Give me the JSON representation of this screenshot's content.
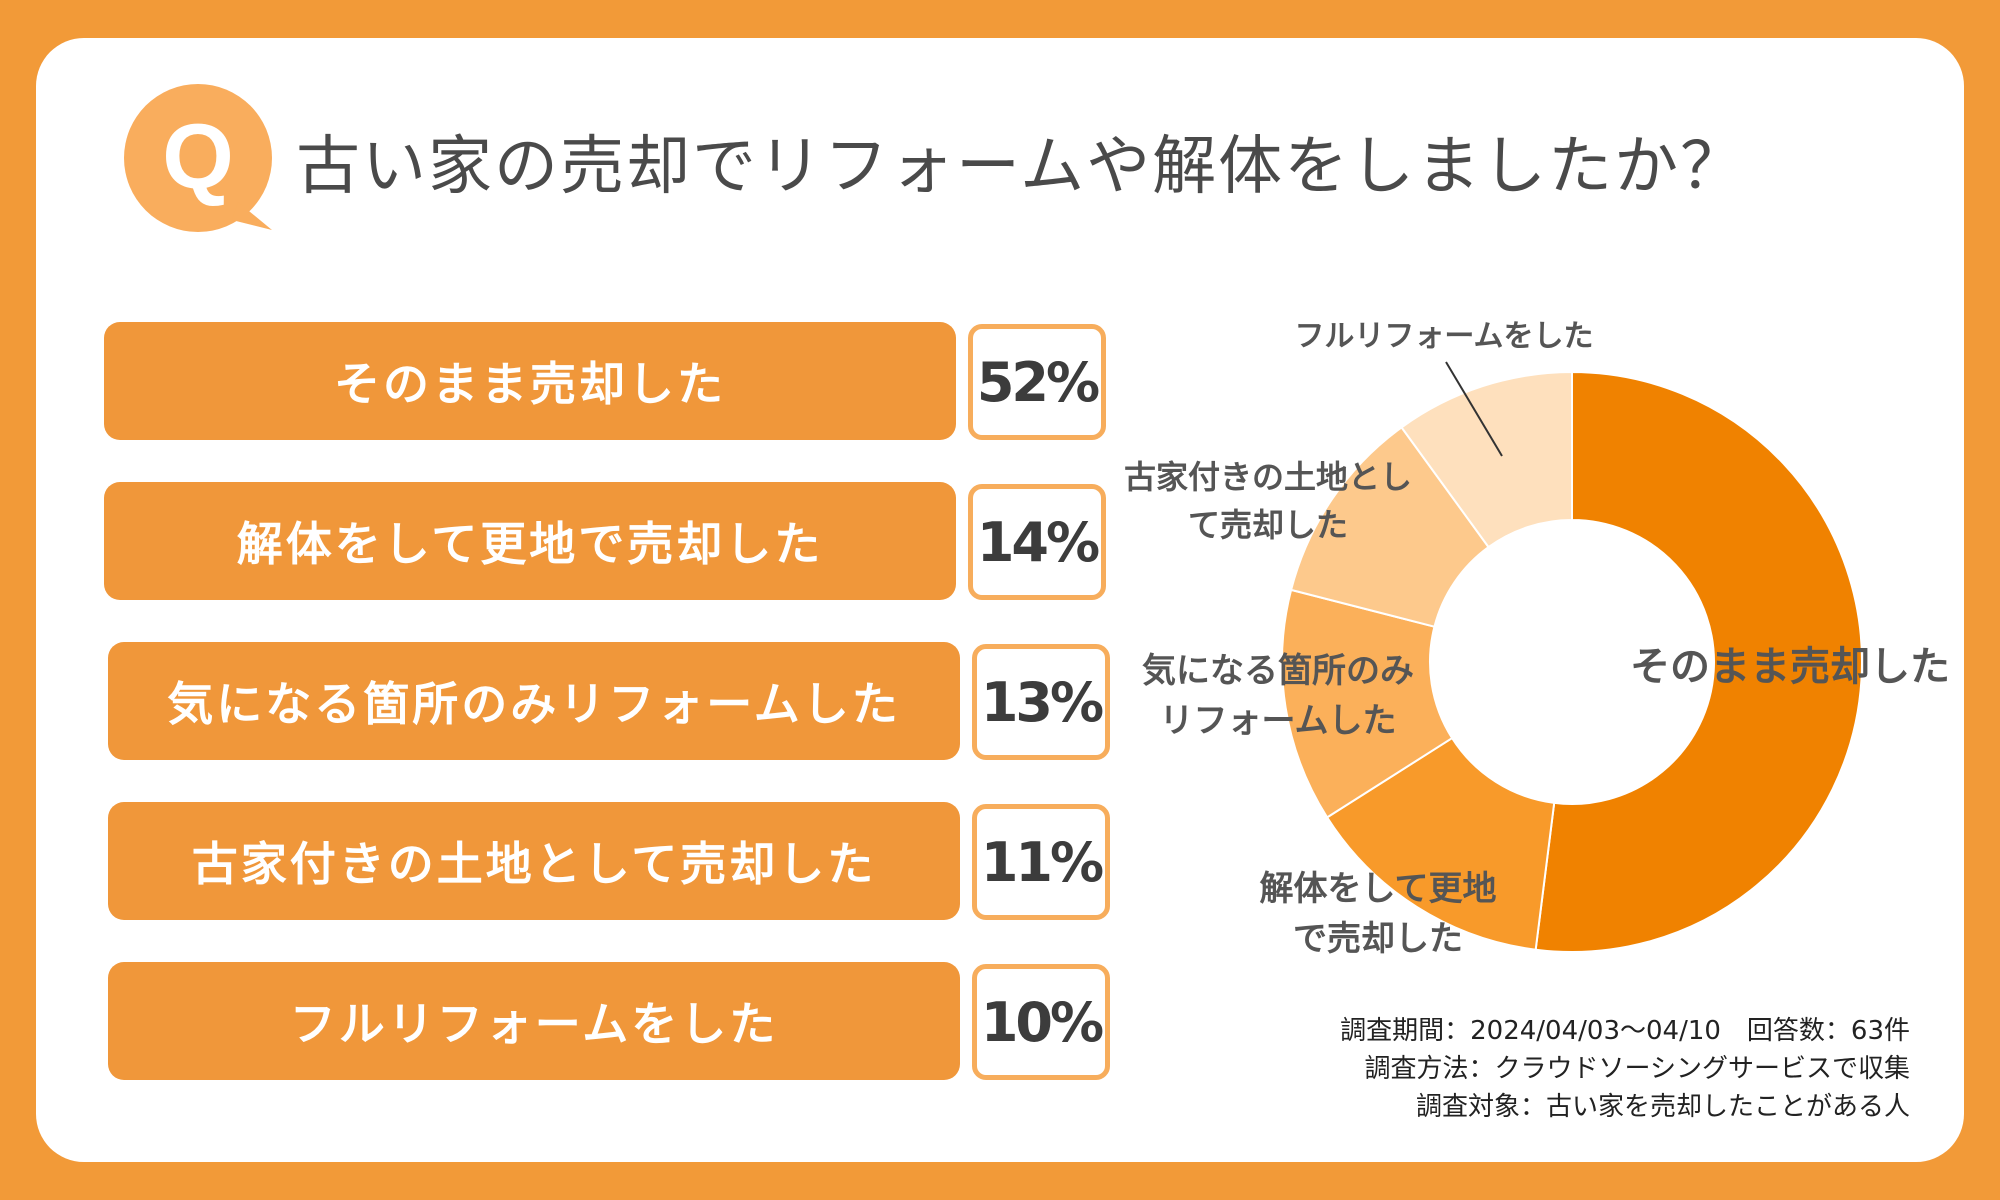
{
  "header": {
    "badge_letter": "Q",
    "title": "古い家の売却でリフォームや解体をしましたか？"
  },
  "colors": {
    "frame": "#f29a38",
    "label_bg": "#f0973a",
    "pct_border": "#f7ad5c",
    "badge": "#f9ad5d",
    "slices": [
      "#f08200",
      "#f89a2a",
      "#fbb05a",
      "#fdc98c",
      "#fee0bd"
    ]
  },
  "chart_data": {
    "type": "pie",
    "variant": "donut",
    "categories": [
      "そのまま売却した",
      "解体をして更地で売却した",
      "気になる箇所のみリフォームした",
      "古家付きの土地として売却した",
      "フルリフォームをした"
    ],
    "values": [
      52,
      14,
      13,
      11,
      10
    ],
    "value_labels": [
      "52%",
      "14%",
      "13%",
      "11%",
      "10%"
    ],
    "slice_labels": [
      [
        "そのまま売却した"
      ],
      [
        "解体をして更地",
        "で売却した"
      ],
      [
        "気になる箇所のみ",
        "リフォームした"
      ],
      [
        "古家付きの土地とし",
        "て売却した"
      ],
      [
        "フルリフォームをした"
      ]
    ],
    "unit": "%"
  },
  "footer": {
    "line1": "調査期間：2024/04/03〜04/10　回答数：63件",
    "line2": "調査方法：クラウドソーシングサービスで収集",
    "line3": "調査対象：古い家を売却したことがある人"
  }
}
